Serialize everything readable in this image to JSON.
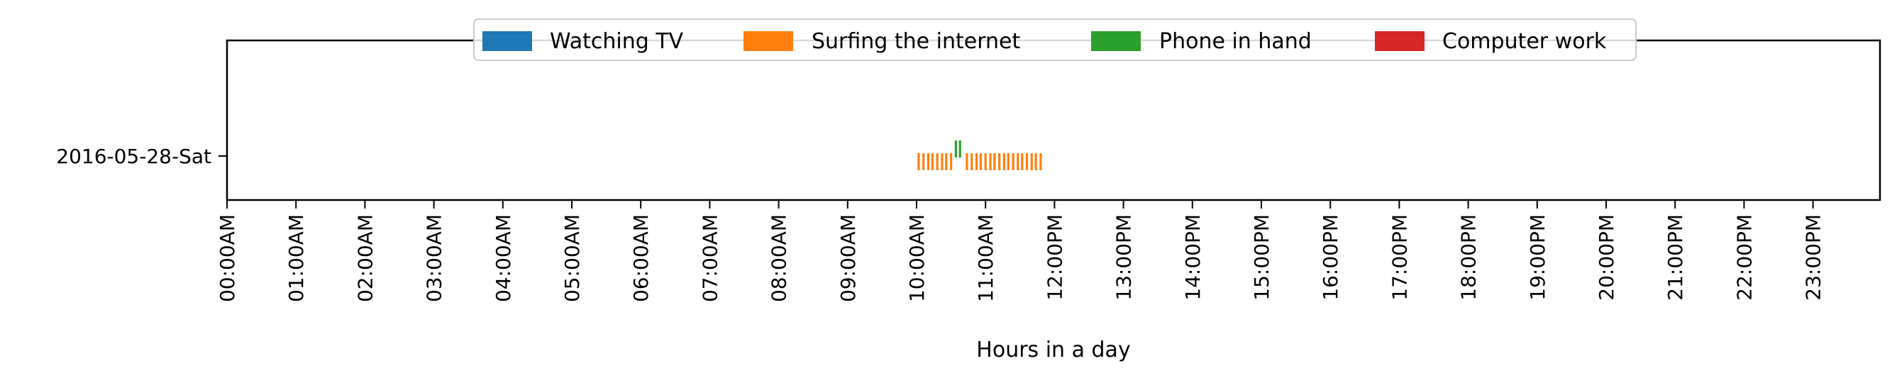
{
  "chart_data": {
    "type": "timeline",
    "xlabel": "Hours in a day",
    "ylabel": "",
    "x_unit": "hour of day",
    "xlim": [
      0,
      23.9
    ],
    "x_ticks": [
      "00:00AM",
      "01:00AM",
      "02:00AM",
      "03:00AM",
      "04:00AM",
      "05:00AM",
      "06:00AM",
      "07:00AM",
      "08:00AM",
      "09:00AM",
      "10:00AM",
      "11:00AM",
      "12:00PM",
      "13:00PM",
      "14:00PM",
      "15:00PM",
      "16:00PM",
      "17:00PM",
      "18:00PM",
      "19:00PM",
      "20:00PM",
      "21:00PM",
      "22:00PM",
      "23:00PM"
    ],
    "categories": [
      "2016-05-28-Sat"
    ],
    "legend_position": "top-center",
    "grid": false,
    "series": [
      {
        "name": "Watching TV",
        "color": "#1f77b4",
        "events": []
      },
      {
        "name": "Surfing the internet",
        "color": "#ff7f0e",
        "events": [
          10.03,
          10.1,
          10.17,
          10.23,
          10.3,
          10.37,
          10.43,
          10.5,
          10.73,
          10.8,
          10.87,
          10.93,
          11.0,
          11.07,
          11.13,
          11.2,
          11.27,
          11.33,
          11.4,
          11.47,
          11.53,
          11.6,
          11.67,
          11.73,
          11.8
        ]
      },
      {
        "name": "Phone in hand",
        "color": "#2ca02c",
        "events": [
          10.57,
          10.63
        ]
      },
      {
        "name": "Computer work",
        "color": "#d62728",
        "events": []
      }
    ]
  }
}
